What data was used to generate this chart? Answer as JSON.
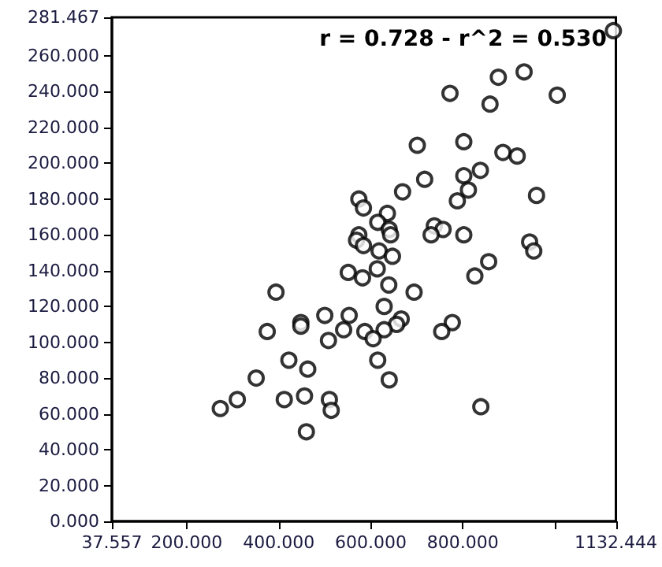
{
  "chart_data": {
    "type": "scatter",
    "annotations": [
      "r = 0.728 - r^2 = 0.530"
    ],
    "x": [
      1127,
      877,
      933,
      772,
      859,
      1005,
      701,
      802,
      887,
      918,
      717,
      802,
      838,
      669,
      574,
      584,
      788,
      812,
      960,
      636,
      615,
      640,
      643,
      574,
      569,
      584,
      618,
      647,
      738,
      757,
      731,
      802,
      945,
      954,
      614,
      551,
      582,
      856,
      826,
      639,
      694,
      394,
      629,
      448,
      448,
      500,
      553,
      666,
      656,
      777,
      754,
      375,
      541,
      587,
      629,
      605,
      508,
      422,
      463,
      615,
      640,
      351,
      310,
      273,
      412,
      456,
      510,
      514,
      460,
      839
    ],
    "values": [
      274,
      248,
      251,
      239,
      233,
      238,
      210,
      212,
      206,
      204,
      191,
      193,
      196,
      184,
      180,
      175,
      179,
      185,
      182,
      172,
      167,
      163,
      160,
      160,
      157,
      154,
      151,
      148,
      165,
      163,
      160,
      160,
      156,
      151,
      141,
      139,
      136,
      145,
      137,
      132,
      128,
      128,
      120,
      111,
      109,
      115,
      115,
      113,
      110,
      111,
      106,
      106,
      107,
      106,
      107,
      102,
      101,
      90,
      85,
      90,
      79,
      80,
      68,
      63,
      68,
      70,
      68,
      62,
      50,
      64
    ],
    "color": "#000000",
    "marker": "circle",
    "grid": false,
    "xlim": [
      37.557,
      1132.444
    ],
    "xticks": [
      37.557,
      {
        "value": 200,
        "label": "200.000"
      },
      {
        "value": 400,
        "label": "400.000"
      },
      {
        "value": 600,
        "label": "600.000"
      },
      {
        "value": 800,
        "label": "800.000"
      },
      {
        "value": 1000,
        "label": null
      },
      1132.444
    ],
    "ylim": [
      0,
      281.467
    ],
    "yticks": [
      {
        "value": 0,
        "label": "0.000"
      },
      {
        "value": 20,
        "label": "20.000"
      },
      {
        "value": 40,
        "label": "40.000"
      },
      {
        "value": 60,
        "label": "60.000"
      },
      {
        "value": 80,
        "label": "80.000"
      },
      {
        "value": 100,
        "label": "100.000"
      },
      {
        "value": 120,
        "label": "120.000"
      },
      {
        "value": 140,
        "label": "140.000"
      },
      {
        "value": 160,
        "label": "160.000"
      },
      {
        "value": 180,
        "label": "180.000"
      },
      {
        "value": 200,
        "label": "200.000"
      },
      {
        "value": 220,
        "label": "220.000"
      },
      {
        "value": 240,
        "label": "240.000"
      },
      {
        "value": 260,
        "label": "260.000"
      },
      281.467
    ]
  }
}
